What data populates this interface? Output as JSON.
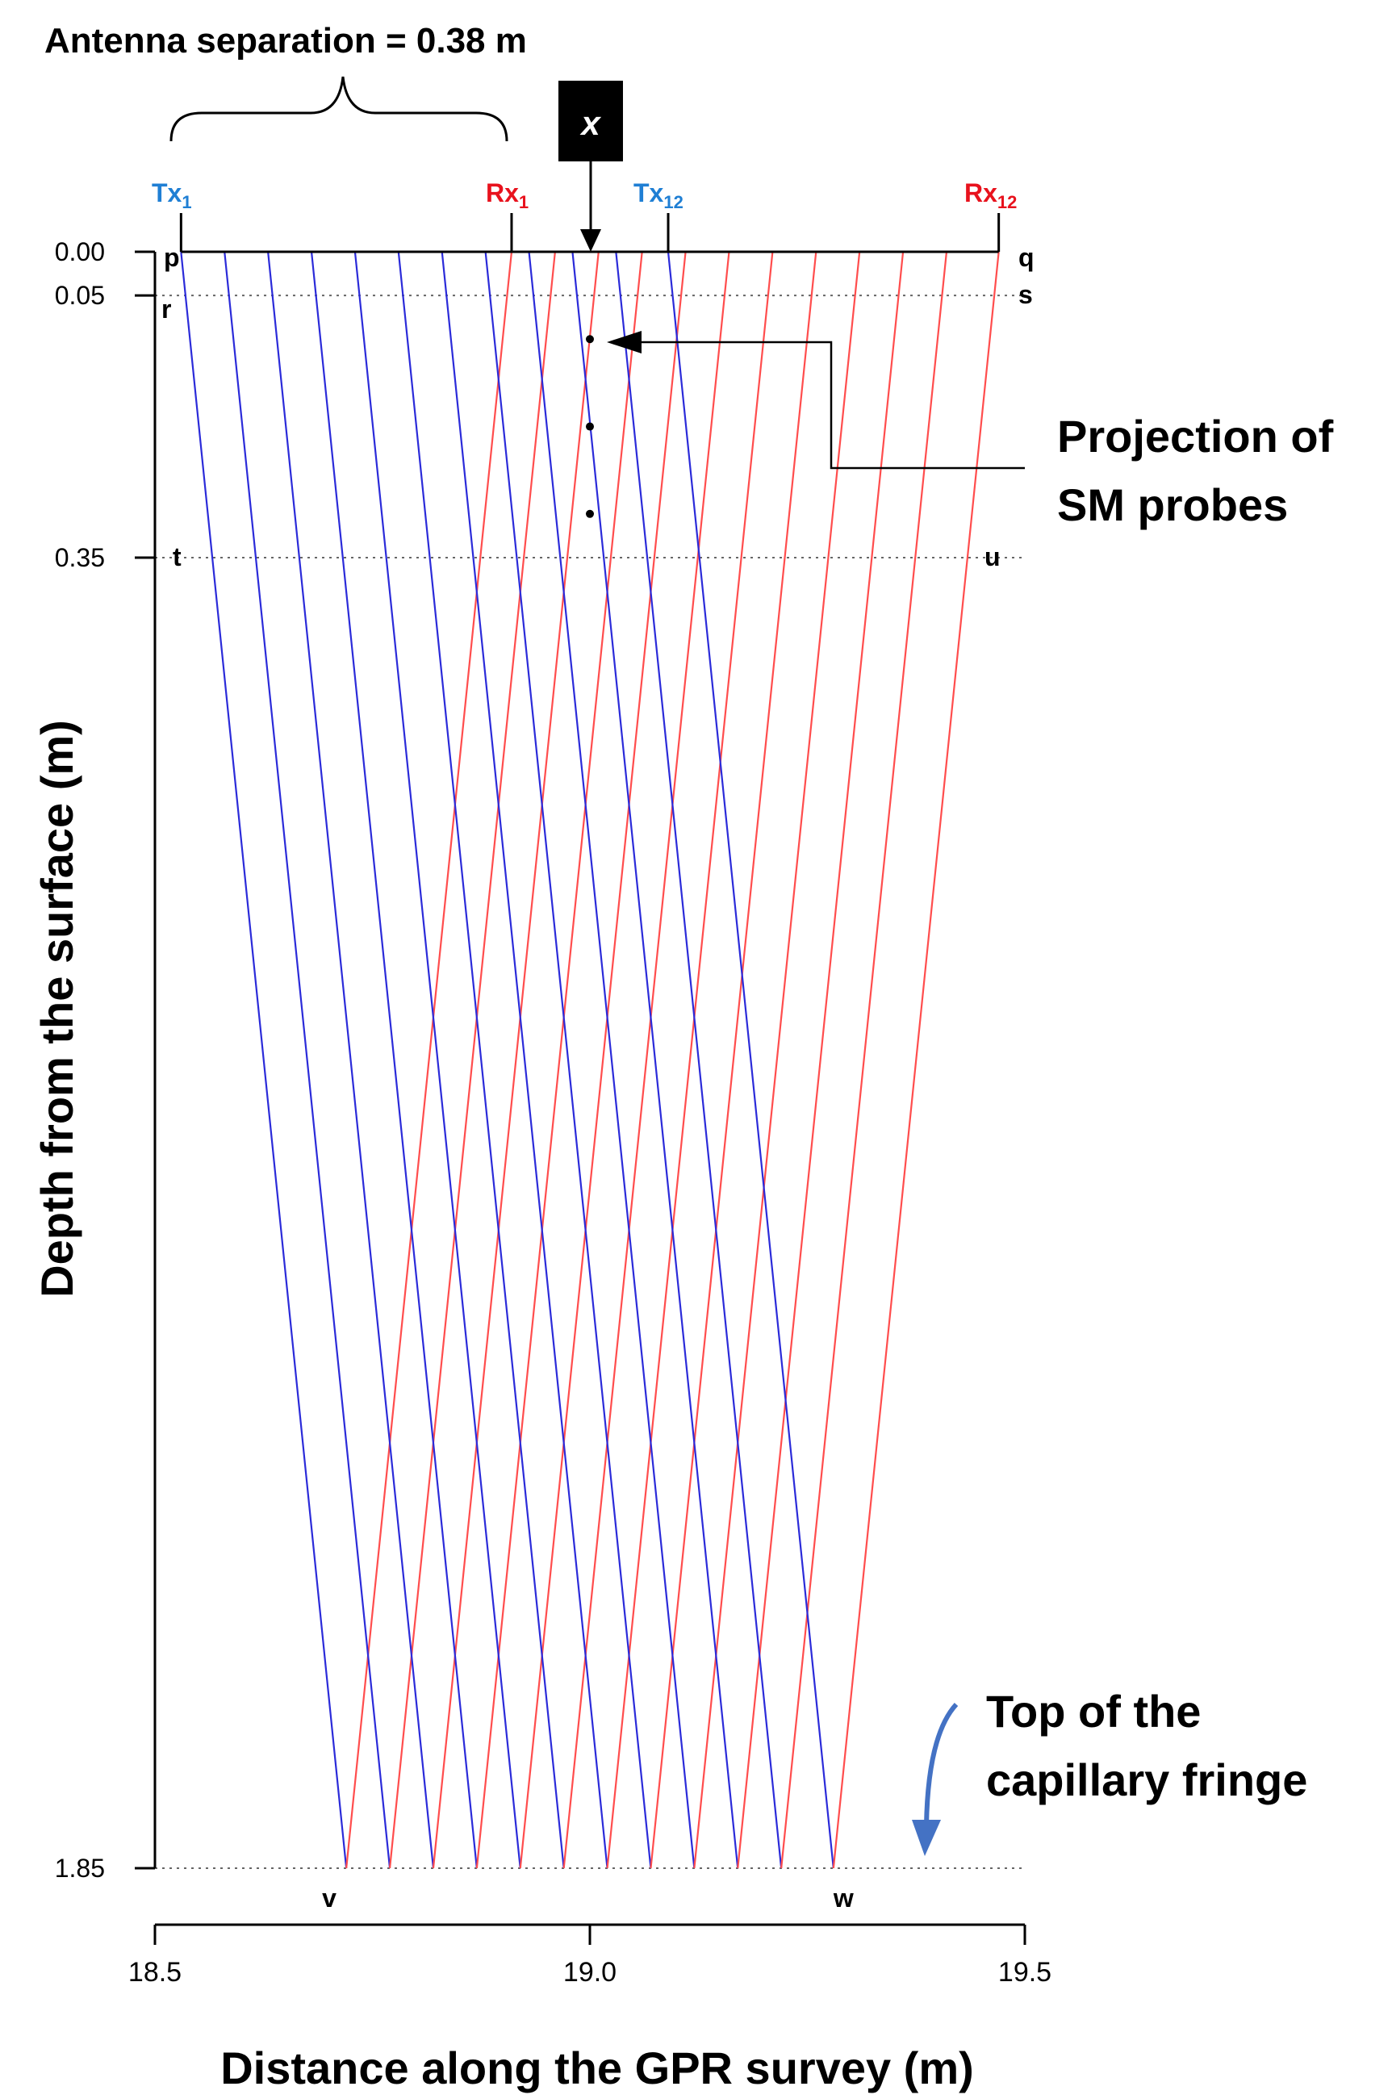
{
  "chart_data": {
    "type": "diagram",
    "title": "",
    "xlabel": "Distance along the GPR survey (m)",
    "ylabel": "Depth from the surface (m)",
    "xlim": [
      18.5,
      19.5
    ],
    "ylim": [
      0.0,
      1.85
    ],
    "x_ticks": [
      {
        "value": 18.5,
        "label": "18.5"
      },
      {
        "value": 19.0,
        "label": "19.0"
      },
      {
        "value": 19.5,
        "label": "19.5"
      }
    ],
    "y_ticks": [
      {
        "value": 0.0,
        "label": "0.00"
      },
      {
        "value": 0.05,
        "label": "0.05"
      },
      {
        "value": 0.35,
        "label": "0.35"
      },
      {
        "value": 1.85,
        "label": "1.85"
      }
    ],
    "surface_x_range": [
      18.53,
      19.47
    ],
    "dotted_depths": [
      0.05,
      0.35,
      1.85
    ],
    "reflection_depth": 1.85,
    "antenna_separation_value": 0.38,
    "antenna_separation_label": "Antenna separation = 0.38 m",
    "n_positions": 12,
    "tx_positions": [
      18.53,
      18.58,
      18.63,
      18.68,
      18.73,
      18.78,
      18.83,
      18.88,
      18.93,
      18.98,
      19.03,
      19.09
    ],
    "rx_positions": [
      18.91,
      18.96,
      19.01,
      19.06,
      19.11,
      19.16,
      19.21,
      19.26,
      19.31,
      19.36,
      19.41,
      19.47
    ],
    "tx_label": {
      "base": "Tx",
      "sub1": "1",
      "sub12": "12"
    },
    "rx_label": {
      "base": "Rx",
      "sub1": "1",
      "sub12": "12"
    },
    "tx_color": "#2b2bd9",
    "rx_color": "#ff4d4d",
    "tx_label_color": "#1f7fd4",
    "rx_label_color": "#e8121d",
    "capillary_arrow_color": "#4472c4",
    "corner_labels": {
      "p": "p",
      "q": "q",
      "r": "r",
      "s": "s",
      "t": "t",
      "u": "u",
      "v": "v",
      "w": "w"
    },
    "marker": {
      "label": "x",
      "x": 19.0
    },
    "sm_probes": {
      "x": 19.0,
      "depths": [
        0.1,
        0.2,
        0.3
      ],
      "label_line1": "Projection of",
      "label_line2": "SM probes"
    },
    "capillary_label": {
      "line1": "Top of the",
      "line2": "capillary fringe"
    }
  }
}
